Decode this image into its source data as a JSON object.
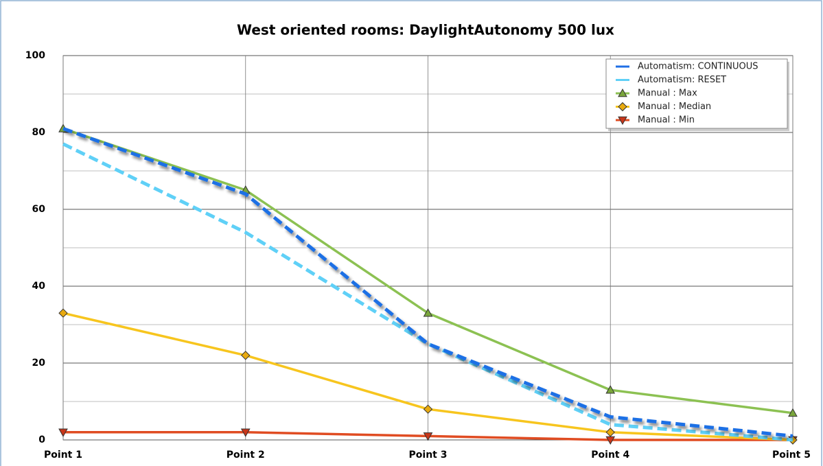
{
  "chart_data": {
    "type": "line",
    "title": "West oriented rooms: DaylightAutonomy 500 lux",
    "categories": [
      "Point 1",
      "Point 2",
      "Point 3",
      "Point 4",
      "Point 5"
    ],
    "ylim": [
      0,
      100
    ],
    "yticks": [
      0,
      20,
      40,
      60,
      80,
      100
    ],
    "yminorticks": [
      10,
      30,
      50,
      70,
      90
    ],
    "grid": true,
    "legend": "upper right",
    "series": [
      {
        "name": "Automatism: CONTINUOUS",
        "color": "#1f6fe5",
        "dashed": true,
        "shadow": true,
        "values": [
          81,
          64,
          25,
          6,
          1
        ]
      },
      {
        "name": "Automatism: RESET",
        "color": "#5fd0f7",
        "dashed": true,
        "values": [
          77,
          54,
          25,
          4,
          0
        ]
      },
      {
        "name": "Manual : Max",
        "color": "#8cc152",
        "marker": "triangle-up",
        "marker_color": "#7aa63c",
        "values": [
          81,
          65,
          33,
          13,
          7
        ]
      },
      {
        "name": "Manual : Median",
        "color": "#f7c51e",
        "marker": "diamond",
        "marker_color": "#e8aa10",
        "values": [
          33,
          22,
          8,
          2,
          0
        ]
      },
      {
        "name": "Manual : Min",
        "color": "#e04c22",
        "marker": "triangle-down",
        "marker_color": "#c8361a",
        "values": [
          2,
          2,
          1,
          0,
          0
        ]
      }
    ]
  }
}
